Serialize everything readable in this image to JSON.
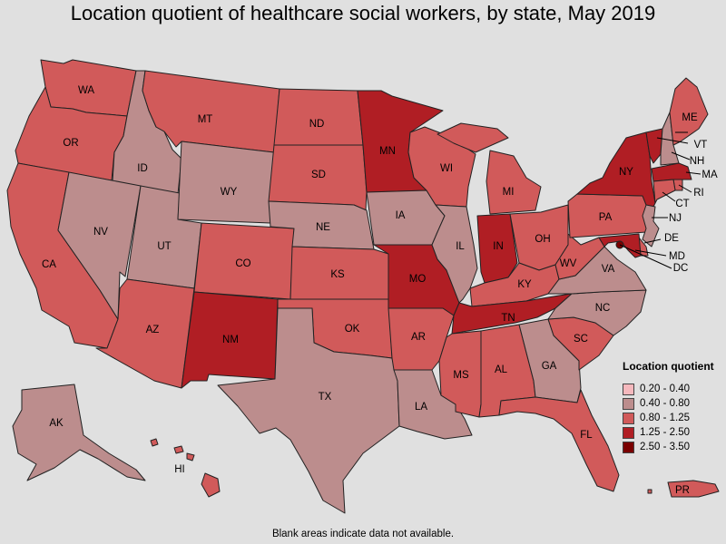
{
  "title": "Location quotient of healthcare social workers, by state, May 2019",
  "legend": {
    "title": "Location quotient",
    "items": [
      {
        "label": "0.20 - 0.40",
        "color": "#f5b8bd"
      },
      {
        "label": "0.40 - 0.80",
        "color": "#bc8d8d"
      },
      {
        "label": "0.80 - 1.25",
        "color": "#d15a5a"
      },
      {
        "label": "1.25 - 2.50",
        "color": "#b01e24"
      },
      {
        "label": "2.50 - 3.50",
        "color": "#7a0000"
      }
    ]
  },
  "footnote": "Blank areas indicate data not available.",
  "states": [
    {
      "abbr": "WA",
      "class": 2
    },
    {
      "abbr": "OR",
      "class": 2
    },
    {
      "abbr": "CA",
      "class": 2
    },
    {
      "abbr": "ID",
      "class": 1
    },
    {
      "abbr": "NV",
      "class": 1
    },
    {
      "abbr": "UT",
      "class": 1
    },
    {
      "abbr": "AZ",
      "class": 2
    },
    {
      "abbr": "MT",
      "class": 2
    },
    {
      "abbr": "WY",
      "class": 1
    },
    {
      "abbr": "CO",
      "class": 2
    },
    {
      "abbr": "NM",
      "class": 3
    },
    {
      "abbr": "ND",
      "class": 2
    },
    {
      "abbr": "SD",
      "class": 2
    },
    {
      "abbr": "NE",
      "class": 1
    },
    {
      "abbr": "KS",
      "class": 2
    },
    {
      "abbr": "OK",
      "class": 2
    },
    {
      "abbr": "TX",
      "class": 1
    },
    {
      "abbr": "MN",
      "class": 3
    },
    {
      "abbr": "IA",
      "class": 1
    },
    {
      "abbr": "MO",
      "class": 3
    },
    {
      "abbr": "AR",
      "class": 2
    },
    {
      "abbr": "LA",
      "class": 1
    },
    {
      "abbr": "WI",
      "class": 2
    },
    {
      "abbr": "IL",
      "class": 1
    },
    {
      "abbr": "MI",
      "class": 2
    },
    {
      "abbr": "IN",
      "class": 3
    },
    {
      "abbr": "OH",
      "class": 2
    },
    {
      "abbr": "KY",
      "class": 2
    },
    {
      "abbr": "TN",
      "class": 3
    },
    {
      "abbr": "MS",
      "class": 2
    },
    {
      "abbr": "AL",
      "class": 2
    },
    {
      "abbr": "GA",
      "class": 1
    },
    {
      "abbr": "FL",
      "class": 2
    },
    {
      "abbr": "SC",
      "class": 2
    },
    {
      "abbr": "NC",
      "class": 1
    },
    {
      "abbr": "VA",
      "class": 1
    },
    {
      "abbr": "WV",
      "class": 2
    },
    {
      "abbr": "PA",
      "class": 2
    },
    {
      "abbr": "NY",
      "class": 3
    },
    {
      "abbr": "VT",
      "class": 3
    },
    {
      "abbr": "NH",
      "class": 1
    },
    {
      "abbr": "ME",
      "class": 2
    },
    {
      "abbr": "MA",
      "class": 3
    },
    {
      "abbr": "RI",
      "class": 2
    },
    {
      "abbr": "CT",
      "class": 2
    },
    {
      "abbr": "NJ",
      "class": 1
    },
    {
      "abbr": "DE",
      "class": 2
    },
    {
      "abbr": "MD",
      "class": 3
    },
    {
      "abbr": "DC",
      "class": 4
    },
    {
      "abbr": "AK",
      "class": 1
    },
    {
      "abbr": "HI",
      "class": 2
    },
    {
      "abbr": "PR",
      "class": 2
    }
  ]
}
